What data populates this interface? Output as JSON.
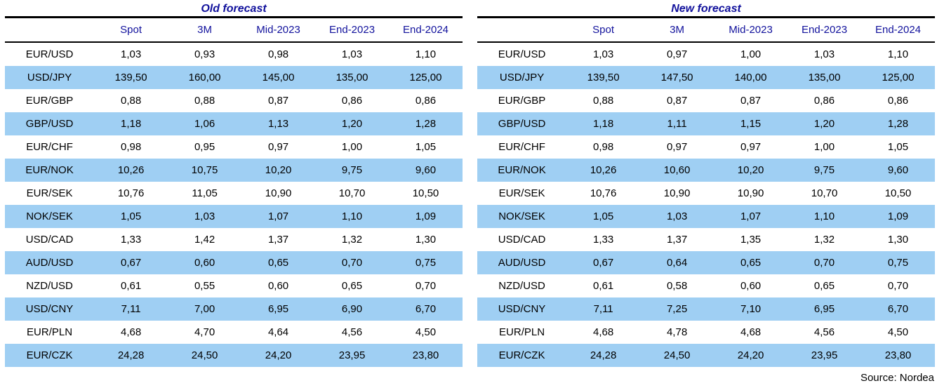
{
  "source": "Source: Nordea",
  "colors": {
    "accent_navy": "#11119c",
    "row_highlight_blue": "#9fcff3",
    "rule_black": "#000000"
  },
  "chart_data": [
    {
      "type": "table",
      "title": "Old forecast",
      "headers": [
        "Spot",
        "3M",
        "Mid-2023",
        "End-2023",
        "End-2024"
      ],
      "rows": [
        {
          "pair": "EUR/USD",
          "values": [
            "1,03",
            "0,93",
            "0,98",
            "1,03",
            "1,10"
          ]
        },
        {
          "pair": "USD/JPY",
          "values": [
            "139,50",
            "160,00",
            "145,00",
            "135,00",
            "125,00"
          ]
        },
        {
          "pair": "EUR/GBP",
          "values": [
            "0,88",
            "0,88",
            "0,87",
            "0,86",
            "0,86"
          ]
        },
        {
          "pair": "GBP/USD",
          "values": [
            "1,18",
            "1,06",
            "1,13",
            "1,20",
            "1,28"
          ]
        },
        {
          "pair": "EUR/CHF",
          "values": [
            "0,98",
            "0,95",
            "0,97",
            "1,00",
            "1,05"
          ]
        },
        {
          "pair": "EUR/NOK",
          "values": [
            "10,26",
            "10,75",
            "10,20",
            "9,75",
            "9,60"
          ]
        },
        {
          "pair": "EUR/SEK",
          "values": [
            "10,76",
            "11,05",
            "10,90",
            "10,70",
            "10,50"
          ]
        },
        {
          "pair": "NOK/SEK",
          "values": [
            "1,05",
            "1,03",
            "1,07",
            "1,10",
            "1,09"
          ]
        },
        {
          "pair": "USD/CAD",
          "values": [
            "1,33",
            "1,42",
            "1,37",
            "1,32",
            "1,30"
          ]
        },
        {
          "pair": "AUD/USD",
          "values": [
            "0,67",
            "0,60",
            "0,65",
            "0,70",
            "0,75"
          ]
        },
        {
          "pair": "NZD/USD",
          "values": [
            "0,61",
            "0,55",
            "0,60",
            "0,65",
            "0,70"
          ]
        },
        {
          "pair": "USD/CNY",
          "values": [
            "7,11",
            "7,00",
            "6,95",
            "6,90",
            "6,70"
          ]
        },
        {
          "pair": "EUR/PLN",
          "values": [
            "4,68",
            "4,70",
            "4,64",
            "4,56",
            "4,50"
          ]
        },
        {
          "pair": "EUR/CZK",
          "values": [
            "24,28",
            "24,50",
            "24,20",
            "23,95",
            "23,80"
          ]
        }
      ]
    },
    {
      "type": "table",
      "title": "New forecast",
      "headers": [
        "Spot",
        "3M",
        "Mid-2023",
        "End-2023",
        "End-2024"
      ],
      "rows": [
        {
          "pair": "EUR/USD",
          "values": [
            "1,03",
            "0,97",
            "1,00",
            "1,03",
            "1,10"
          ]
        },
        {
          "pair": "USD/JPY",
          "values": [
            "139,50",
            "147,50",
            "140,00",
            "135,00",
            "125,00"
          ]
        },
        {
          "pair": "EUR/GBP",
          "values": [
            "0,88",
            "0,87",
            "0,87",
            "0,86",
            "0,86"
          ]
        },
        {
          "pair": "GBP/USD",
          "values": [
            "1,18",
            "1,11",
            "1,15",
            "1,20",
            "1,28"
          ]
        },
        {
          "pair": "EUR/CHF",
          "values": [
            "0,98",
            "0,97",
            "0,97",
            "1,00",
            "1,05"
          ]
        },
        {
          "pair": "EUR/NOK",
          "values": [
            "10,26",
            "10,60",
            "10,20",
            "9,75",
            "9,60"
          ]
        },
        {
          "pair": "EUR/SEK",
          "values": [
            "10,76",
            "10,90",
            "10,90",
            "10,70",
            "10,50"
          ]
        },
        {
          "pair": "NOK/SEK",
          "values": [
            "1,05",
            "1,03",
            "1,07",
            "1,10",
            "1,09"
          ]
        },
        {
          "pair": "USD/CAD",
          "values": [
            "1,33",
            "1,37",
            "1,35",
            "1,32",
            "1,30"
          ]
        },
        {
          "pair": "AUD/USD",
          "values": [
            "0,67",
            "0,64",
            "0,65",
            "0,70",
            "0,75"
          ]
        },
        {
          "pair": "NZD/USD",
          "values": [
            "0,61",
            "0,58",
            "0,60",
            "0,65",
            "0,70"
          ]
        },
        {
          "pair": "USD/CNY",
          "values": [
            "7,11",
            "7,25",
            "7,10",
            "6,95",
            "6,70"
          ]
        },
        {
          "pair": "EUR/PLN",
          "values": [
            "4,68",
            "4,78",
            "4,68",
            "4,56",
            "4,50"
          ]
        },
        {
          "pair": "EUR/CZK",
          "values": [
            "24,28",
            "24,50",
            "24,20",
            "23,95",
            "23,80"
          ]
        }
      ]
    }
  ]
}
